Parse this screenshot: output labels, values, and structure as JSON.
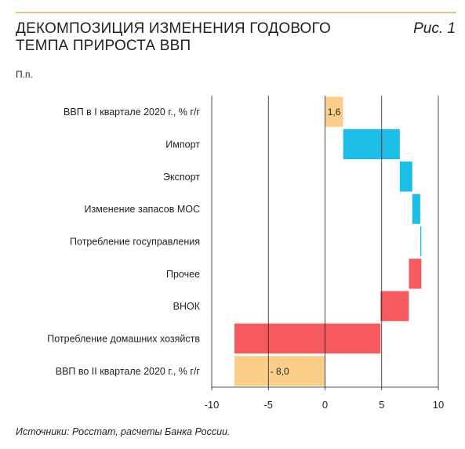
{
  "header": {
    "title": "ДЕКОМПОЗИЦИЯ ИЗМЕНЕНИЯ ГОДОВОГО ТЕМПА ПРИРОСТА ВВП",
    "figure_label": "Рис. 1",
    "units": "П.п."
  },
  "footer": {
    "source": "Источники: Росстат, расчеты Банка России."
  },
  "colors": {
    "total": "#fbcf8a",
    "positive": "#1cbde7",
    "negative": "#f65a5e",
    "grid": "#231f20",
    "rule": "#e8c77a"
  },
  "chart_data": {
    "type": "bar",
    "subtype": "waterfall",
    "orientation": "horizontal",
    "xlim": [
      -10,
      10
    ],
    "xticks": [
      -10,
      -5,
      0,
      5,
      10
    ],
    "xtick_labels": [
      "-10",
      "-5",
      "0",
      "5",
      "10"
    ],
    "grid": "vertical",
    "categories": [
      "ВВП в I квартале 2020 г., % г/г",
      "Импорт",
      "Экспорт",
      "Изменение запасов МОС",
      "Потребление госуправления",
      "Прочее",
      "ВНОК",
      "Потребление домашних хозяйств",
      "ВВП во II квартале 2020 г., % г/г"
    ],
    "bars": [
      {
        "start": 0,
        "end": 1.6,
        "kind": "total",
        "label": "1,6"
      },
      {
        "start": 1.6,
        "end": 6.6,
        "kind": "positive",
        "label": ""
      },
      {
        "start": 6.6,
        "end": 7.7,
        "kind": "positive",
        "label": ""
      },
      {
        "start": 7.7,
        "end": 8.4,
        "kind": "positive",
        "label": ""
      },
      {
        "start": 8.4,
        "end": 8.5,
        "kind": "positive",
        "label": ""
      },
      {
        "start": 8.5,
        "end": 7.4,
        "kind": "negative",
        "label": ""
      },
      {
        "start": 7.4,
        "end": 4.9,
        "kind": "negative",
        "label": ""
      },
      {
        "start": 4.9,
        "end": -8.0,
        "kind": "negative",
        "label": ""
      },
      {
        "start": 0,
        "end": -8.0,
        "kind": "total",
        "label": "- 8,0"
      }
    ]
  }
}
